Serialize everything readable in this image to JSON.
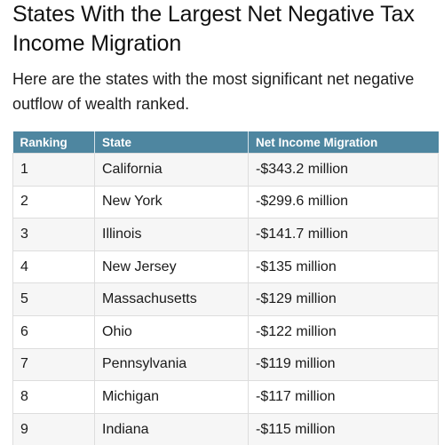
{
  "article": {
    "title": "States With the Largest Net Negative Tax Income Migration",
    "intro": "Here are the states with the most significant net negative outflow of wealth ranked."
  },
  "table": {
    "headers": [
      "Ranking",
      "State",
      "Net Income Migration"
    ],
    "rows": [
      [
        "1",
        "California",
        "-$343.2 million"
      ],
      [
        "2",
        "New York",
        "-$299.6 million"
      ],
      [
        "3",
        "Illinois",
        "-$141.7 million"
      ],
      [
        "4",
        "New Jersey",
        "-$135 million"
      ],
      [
        "5",
        "Massachusetts",
        "-$129 million"
      ],
      [
        "6",
        "Ohio",
        "-$122 million"
      ],
      [
        "7",
        "Pennsylvania",
        "-$119 million"
      ],
      [
        "8",
        "Michigan",
        "-$117 million"
      ],
      [
        "9",
        "Indiana",
        "-$115 million"
      ]
    ]
  },
  "colors": {
    "header_background": "#4e86a0",
    "header_text": "#ffffff",
    "stripe_row": "#f6f6f6"
  }
}
